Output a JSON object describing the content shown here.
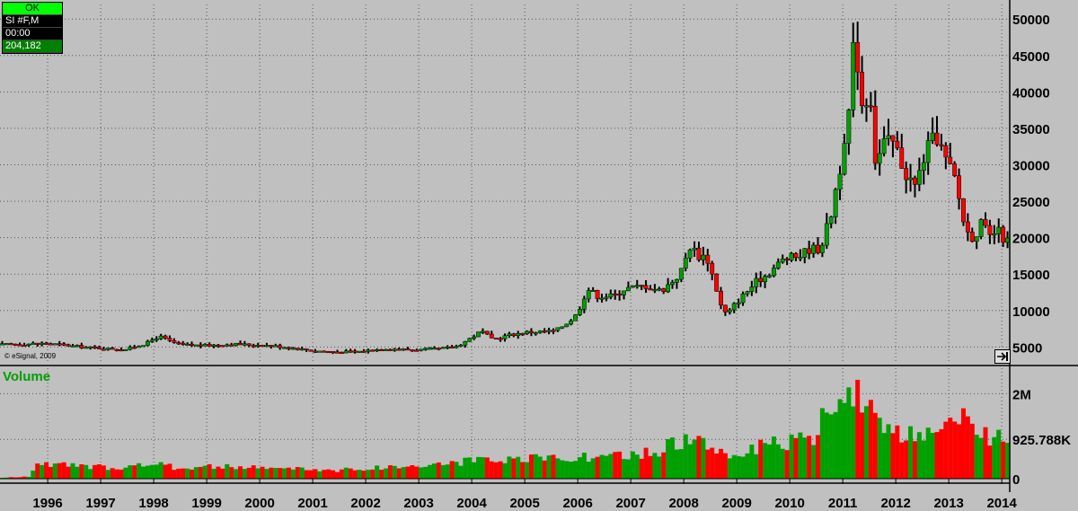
{
  "info_box": {
    "status": "OK",
    "symbol": "SI #F,M",
    "time": "00:00",
    "value": "204,182"
  },
  "copyright": "© eSignal, 2009",
  "icons": {
    "scroll": "scroll-right-icon"
  },
  "colors": {
    "background": "#c0c0c0",
    "up": "#00a000",
    "down": "#ff0000",
    "wick": "#000000"
  },
  "chart_data": [
    {
      "type": "candlestick",
      "symbol": "SI #F,M",
      "interval": "monthly",
      "x_ticks": [
        "1996",
        "1997",
        "1998",
        "1999",
        "2000",
        "2001",
        "2002",
        "2003",
        "2004",
        "2005",
        "2006",
        "2007",
        "2008",
        "2009",
        "2010",
        "2011",
        "2012",
        "2013",
        "2014"
      ],
      "y_ticks": [
        5000,
        10000,
        15000,
        20000,
        25000,
        30000,
        35000,
        40000,
        45000,
        50000
      ],
      "ylim": [
        2700,
        52000
      ],
      "grid": true,
      "x_start": 1995.1,
      "x_end": 2014.15,
      "close_points": [
        [
          "1995.1",
          5300
        ],
        [
          "1995.5",
          5400
        ],
        [
          "1996.0",
          5500
        ],
        [
          "1996.5",
          5100
        ],
        [
          "1997.0",
          4800
        ],
        [
          "1997.5",
          4700
        ],
        [
          "1997.9",
          5600
        ],
        [
          "1998.1",
          6500
        ],
        [
          "1998.3",
          5800
        ],
        [
          "1998.5",
          5300
        ],
        [
          "1999.0",
          5200
        ],
        [
          "1999.5",
          5400
        ],
        [
          "1999.8",
          5300
        ],
        [
          "2000.0",
          5300
        ],
        [
          "2000.5",
          5000
        ],
        [
          "2001.0",
          4500
        ],
        [
          "2001.5",
          4300
        ],
        [
          "2001.9",
          4400
        ],
        [
          "2002.4",
          4800
        ],
        [
          "2002.9",
          4600
        ],
        [
          "2003.3",
          4700
        ],
        [
          "2003.7",
          5000
        ],
        [
          "2003.9",
          5800
        ],
        [
          "2004.2",
          7200
        ],
        [
          "2004.4",
          6000
        ],
        [
          "2004.7",
          6600
        ],
        [
          "2005.0",
          7000
        ],
        [
          "2005.3",
          7100
        ],
        [
          "2005.6",
          7200
        ],
        [
          "2005.9",
          8800
        ],
        [
          "2006.0",
          9500
        ],
        [
          "2006.2",
          13000
        ],
        [
          "2006.4",
          12000
        ],
        [
          "2006.7",
          12000
        ],
        [
          "2006.9",
          13000
        ],
        [
          "2007.3",
          13400
        ],
        [
          "2007.6",
          12700
        ],
        [
          "2007.8",
          14000
        ],
        [
          "2007.95",
          15000
        ],
        [
          "2008.15",
          19000
        ],
        [
          "2008.3",
          17500
        ],
        [
          "2008.45",
          17500
        ],
        [
          "2008.6",
          14000
        ],
        [
          "2008.75",
          10000
        ],
        [
          "2008.85",
          9500
        ],
        [
          "2009.0",
          11000
        ],
        [
          "2009.2",
          12500
        ],
        [
          "2009.4",
          14000
        ],
        [
          "2009.6",
          15000
        ],
        [
          "2009.9",
          17000
        ],
        [
          "2010.2",
          17500
        ],
        [
          "2010.4",
          18500
        ],
        [
          "2010.6",
          18500
        ],
        [
          "2010.8",
          23000
        ],
        [
          "2010.95",
          29000
        ],
        [
          "2011.1",
          33000
        ],
        [
          "2011.25",
          48000
        ],
        [
          "2011.4",
          38000
        ],
        [
          "2011.55",
          40000
        ],
        [
          "2011.65",
          30000
        ],
        [
          "2011.8",
          33000
        ],
        [
          "2012.0",
          33000
        ],
        [
          "2012.2",
          29000
        ],
        [
          "2012.4",
          27000
        ],
        [
          "2012.6",
          32000
        ],
        [
          "2012.8",
          34000
        ],
        [
          "2012.95",
          31000
        ],
        [
          "2013.15",
          28000
        ],
        [
          "2013.35",
          21000
        ],
        [
          "2013.5",
          20000
        ],
        [
          "2013.65",
          22000
        ],
        [
          "2013.8",
          20000
        ],
        [
          "2013.95",
          21000
        ],
        [
          "2014.1",
          19500
        ]
      ]
    },
    {
      "type": "bar",
      "title": "Volume",
      "y_ticks": [
        "2M",
        "925.788K",
        "0"
      ],
      "y_tick_values": [
        2000000,
        925788,
        0
      ],
      "ylim": [
        0,
        2600000
      ],
      "volume_points": [
        [
          "1995.1",
          20000
        ],
        [
          "1995.7",
          50000
        ],
        [
          "1995.75",
          400000
        ],
        [
          "1996.0",
          330000
        ],
        [
          "1996.5",
          300000
        ],
        [
          "1997.0",
          270000
        ],
        [
          "1997.5",
          280000
        ],
        [
          "1998.0",
          350000
        ],
        [
          "1998.5",
          250000
        ],
        [
          "1999.0",
          290000
        ],
        [
          "1999.5",
          270000
        ],
        [
          "2000.0",
          260000
        ],
        [
          "2000.5",
          240000
        ],
        [
          "2001.0",
          220000
        ],
        [
          "2001.5",
          200000
        ],
        [
          "2002.0",
          240000
        ],
        [
          "2002.5",
          280000
        ],
        [
          "2003.0",
          300000
        ],
        [
          "2003.5",
          350000
        ],
        [
          "2004.0",
          420000
        ],
        [
          "2004.5",
          400000
        ],
        [
          "2005.0",
          450000
        ],
        [
          "2005.5",
          500000
        ],
        [
          "2006.0",
          520000
        ],
        [
          "2006.5",
          480000
        ],
        [
          "2007.0",
          550000
        ],
        [
          "2007.5",
          620000
        ],
        [
          "2007.9",
          900000
        ],
        [
          "2008.3",
          850000
        ],
        [
          "2008.7",
          650000
        ],
        [
          "2009.0",
          550000
        ],
        [
          "2009.5",
          750000
        ],
        [
          "2010.0",
          850000
        ],
        [
          "2010.5",
          950000
        ],
        [
          "2010.7",
          1600000
        ],
        [
          "2010.9",
          1300000
        ],
        [
          "2011.0",
          2000000
        ],
        [
          "2011.2",
          2300000
        ],
        [
          "2011.5",
          1600000
        ],
        [
          "2011.8",
          1100000
        ],
        [
          "2012.0",
          1050000
        ],
        [
          "2012.5",
          950000
        ],
        [
          "2012.9",
          1000000
        ],
        [
          "2013.0",
          1300000
        ],
        [
          "2013.3",
          1350000
        ],
        [
          "2013.6",
          1200000
        ],
        [
          "2013.8",
          1000000
        ],
        [
          "2014.0",
          1050000
        ],
        [
          "2014.1",
          1000000
        ]
      ]
    }
  ]
}
